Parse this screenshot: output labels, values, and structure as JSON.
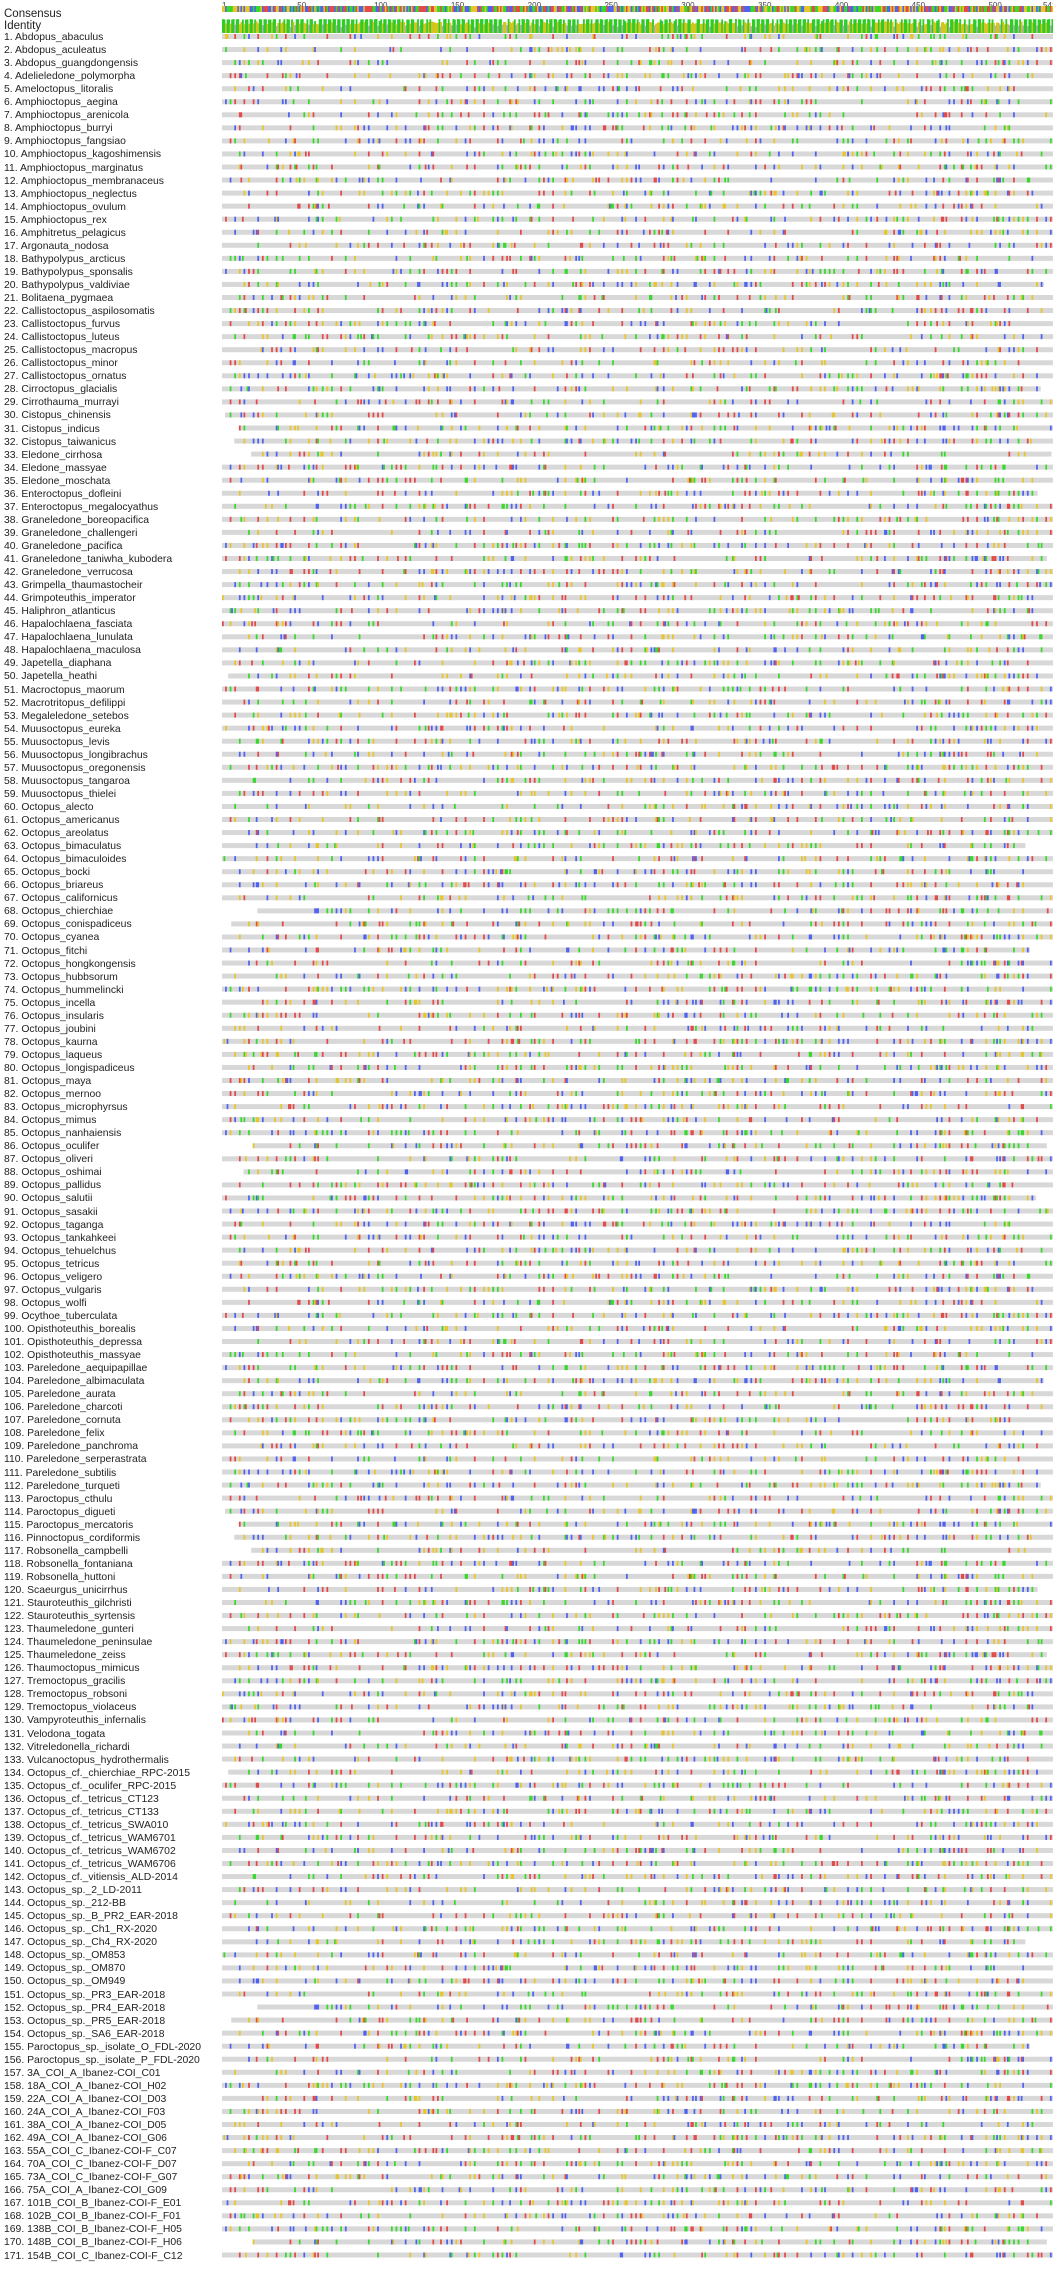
{
  "header": {
    "consensus_label": "Consensus",
    "identity_label": "Identity"
  },
  "ruler": {
    "ticks": [
      1,
      50,
      100,
      150,
      200,
      250,
      300,
      350,
      400,
      450,
      500,
      541
    ],
    "length": 541
  },
  "colors": {
    "identity_high": "#2ecc27",
    "identity_mid": "#d4c41e",
    "identity_low": "#b0b0b0",
    "track": "#d8d8d8",
    "gap": "#ffffff",
    "A": "#e34a4a",
    "C": "#4f63ef",
    "G": "#e8c52a",
    "T": "#38d92c",
    "ambiguous": "#555555"
  },
  "sequences": [
    "1. Abdopus_abaculus",
    "2. Abdopus_aculeatus",
    "3. Abdopus_guangdongensis",
    "4. Adelieledone_polymorpha",
    "5. Ameloctopus_litoralis",
    "6. Amphioctopus_aegina",
    "7. Amphioctopus_arenicola",
    "8. Amphioctopus_burryi",
    "9. Amphioctopus_fangsiao",
    "10. Amphioctopus_kagoshimensis",
    "11. Amphioctopus_marginatus",
    "12. Amphioctopus_membranaceus",
    "13. Amphioctopus_neglectus",
    "14. Amphioctopus_ovulum",
    "15. Amphioctopus_rex",
    "16. Amphitretus_pelagicus",
    "17. Argonauta_nodosa",
    "18. Bathypolypus_arcticus",
    "19. Bathypolypus_sponsalis",
    "20. Bathypolypus_valdiviae",
    "21. Bolitaena_pygmaea",
    "22. Callistoctopus_aspilosomatis",
    "23. Callistoctopus_furvus",
    "24. Callistoctopus_luteus",
    "25. Callistoctopus_macropus",
    "26. Callistoctopus_minor",
    "27. Callistoctopus_ornatus",
    "28. Cirroctopus_glacialis",
    "29. Cirrothauma_murrayi",
    "30. Cistopus_chinensis",
    "31. Cistopus_indicus",
    "32. Cistopus_taiwanicus",
    "33. Eledone_cirrhosa",
    "34. Eledone_massyae",
    "35. Eledone_moschata",
    "36. Enteroctopus_dofleini",
    "37. Enteroctopus_megalocyathus",
    "38. Graneledone_boreopacifica",
    "39. Graneledone_challengeri",
    "40. Graneledone_pacifica",
    "41. Graneledone_taniwha_kubodera",
    "42. Graneledone_verrucosa",
    "43. Grimpella_thaumastocheir",
    "44. Grimpoteuthis_imperator",
    "45. Haliphron_atlanticus",
    "46. Hapalochlaena_fasciata",
    "47. Hapalochlaena_lunulata",
    "48. Hapalochlaena_maculosa",
    "49. Japetella_diaphana",
    "50. Japetella_heathi",
    "51. Macroctopus_maorum",
    "52. Macrotritopus_defilippi",
    "53. Megaleledone_setebos",
    "54. Muusoctopus_eureka",
    "55. Muusoctopus_levis",
    "56. Muusoctopus_longibrachus",
    "57. Muusoctopus_oregonensis",
    "58. Muusoctopus_tangaroa",
    "59. Muusoctopus_thielei",
    "60. Octopus_alecto",
    "61. Octopus_americanus",
    "62. Octopus_areolatus",
    "63. Octopus_bimaculatus",
    "64. Octopus_bimaculoides",
    "65. Octopus_bocki",
    "66. Octopus_briareus",
    "67. Octopus_californicus",
    "68. Octopus_chierchiae",
    "69. Octopus_conispadiceus",
    "70. Octopus_cyanea",
    "71. Octopus_fitchi",
    "72. Octopus_hongkongensis",
    "73. Octopus_hubbsorum",
    "74. Octopus_hummelincki",
    "75. Octopus_incella",
    "76. Octopus_insularis",
    "77. Octopus_joubini",
    "78. Octopus_kaurna",
    "79. Octopus_laqueus",
    "80. Octopus_longispadiceus",
    "81. Octopus_maya",
    "82. Octopus_mernoo",
    "83. Octopus_microphyrsus",
    "84. Octopus_mimus",
    "85. Octopus_nanhaiensis",
    "86. Octopus_oculifer",
    "87. Octopus_oliveri",
    "88. Octopus_oshimai",
    "89. Octopus_pallidus",
    "90. Octopus_salutii",
    "91. Octopus_sasakii",
    "92. Octopus_taganga",
    "93. Octopus_tankahkeei",
    "94. Octopus_tehuelchus",
    "95. Octopus_tetricus",
    "96. Octopus_veligero",
    "97. Octopus_vulgaris",
    "98. Octopus_wolfi",
    "99. Ocythoe_tuberculata",
    "100. Opisthoteuthis_borealis",
    "101. Opisthoteuthis_depressa",
    "102. Opisthoteuthis_massyae",
    "103. Pareledone_aequipapillae",
    "104. Pareledone_albimaculata",
    "105. Pareledone_aurata",
    "106. Pareledone_charcoti",
    "107. Pareledone_cornuta",
    "108. Pareledone_felix",
    "109. Pareledone_panchroma",
    "110. Pareledone_serperastrata",
    "111. Pareledone_subtilis",
    "112. Pareledone_turqueti",
    "113. Paroctopus_cthulu",
    "114. Paroctopus_digueti",
    "115. Paroctopus_mercatoris",
    "116. Pinnoctopus_cordiformis",
    "117. Robsonella_campbelli",
    "118. Robsonella_fontaniana",
    "119. Robsonella_huttoni",
    "120. Scaeurgus_unicirrhus",
    "121. Stauroteuthis_gilchristi",
    "122. Stauroteuthis_syrtensis",
    "123. Thaumeledone_gunteri",
    "124. Thaumeledone_peninsulae",
    "125. Thaumeledone_zeiss",
    "126. Thaumoctopus_mimicus",
    "127. Tremoctopus_gracilis",
    "128. Tremoctopus_robsoni",
    "129. Tremoctopus_violaceus",
    "130. Vampyroteuthis_infernalis",
    "131. Velodona_togata",
    "132. Vitreledonella_richardi",
    "133. Vulcanoctopus_hydrothermalis",
    "134. Octopus_cf._chierchiae_RPC-2015",
    "135. Octopus_cf._oculifer_RPC-2015",
    "136. Octopus_cf._tetricus_CT123",
    "137. Octopus_cf._tetricus_CT133",
    "138. Octopus_cf._tetricus_SWA010",
    "139. Octopus_cf._tetricus_WAM6701",
    "140. Octopus_cf._tetricus_WAM6702",
    "141. Octopus_cf._tetricus_WAM6706",
    "142. Octopus_cf._vitiensis_ALD-2014",
    "143. Octopus_sp._2_LD-2011",
    "144. Octopus_sp._212-BB",
    "145. Octopus_sp._B_PR2_EAR-2018",
    "146. Octopus_sp._Ch1_RX-2020",
    "147. Octopus_sp._Ch4_RX-2020",
    "148. Octopus_sp._OM853",
    "149. Octopus_sp._OM870",
    "150. Octopus_sp._OM949",
    "151. Octopus_sp._PR3_EAR-2018",
    "152. Octopus_sp._PR4_EAR-2018",
    "153. Octopus_sp._PR5_EAR-2018",
    "154. Octopus_sp._SA6_EAR-2018",
    "155. Paroctopus_sp._isolate_O_FDL-2020",
    "156. Paroctopus_sp._isolate_P_FDL-2020",
    "157. 3A_COI_A_Ibanez-COI_C01",
    "158. 18A_COI_A_Ibanez-COI_H02",
    "159. 22A_COI_A_Ibanez-COI_D03",
    "160. 24A_COI_A_Ibanez-COI_F03",
    "161. 38A_COI_A_Ibanez-COI_D05",
    "162. 49A_COI_A_Ibanez-COI_G06",
    "163. 55A_COI_C_Ibanez-COI-F_C07",
    "164. 70A_COI_C_Ibanez-COI-F_D07",
    "165. 73A_COI_C_Ibanez-COI-F_G07",
    "166. 75A_COI_A_Ibanez-COI_G09",
    "167. 101B_COI_B_Ibanez-COI-F_E01",
    "168. 102B_COI_B_Ibanez-COI-F_F01",
    "169. 138B_COI_B_Ibanez-COI-F_H05",
    "170. 148B_COI_B_Ibanez-COI-F_H06",
    "171. 154B_COI_C_Ibanez-COI-F_C12"
  ]
}
